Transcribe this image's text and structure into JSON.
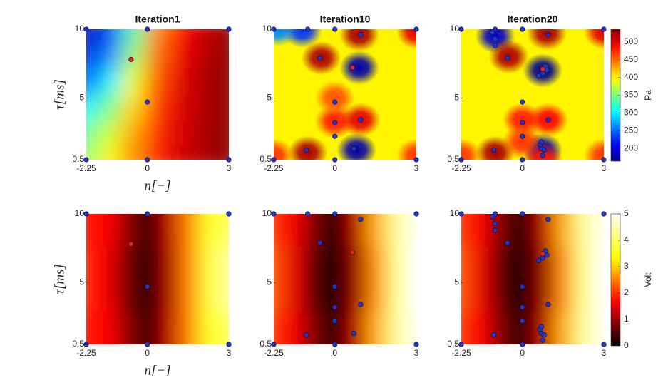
{
  "chart_data": [
    {
      "type": "heatmap",
      "title": "Iteration1",
      "xlabel": "n[−]",
      "ylabel": "τ[ms]",
      "colormap": "jet",
      "clim": [
        164,
        536
      ],
      "xlim": [
        -2.25,
        3
      ],
      "ylim": [
        0.5,
        10
      ],
      "xticks": [
        -2.25,
        0,
        3
      ],
      "yticks": [
        0.5,
        5,
        10
      ],
      "field": {
        "grid": [
          [
            180,
            230,
            330,
            440,
            490,
            510,
            530
          ],
          [
            200,
            260,
            360,
            450,
            495,
            515,
            530
          ],
          [
            240,
            300,
            390,
            460,
            500,
            520,
            530
          ],
          [
            300,
            350,
            410,
            470,
            500,
            520,
            530
          ],
          [
            340,
            380,
            430,
            475,
            505,
            520,
            530
          ],
          [
            360,
            400,
            440,
            480,
            505,
            520,
            530
          ]
        ]
      },
      "series": [
        {
          "color": "#1f35d6",
          "x": [
            -2.25,
            0,
            3,
            0,
            -2.25,
            0,
            3
          ],
          "y": [
            10,
            10,
            10,
            4.7,
            0.5,
            0.5,
            0.5
          ]
        },
        {
          "color": "#e32222",
          "x": [
            -0.6
          ],
          "y": [
            7.8
          ]
        }
      ]
    },
    {
      "type": "heatmap",
      "title": "Iteration10",
      "colormap": "jet",
      "clim": [
        164,
        536
      ],
      "xlim": [
        -2.25,
        3
      ],
      "ylim": [
        0.5,
        10
      ],
      "xticks": [
        -2.25,
        0,
        3
      ],
      "yticks": [
        0.5,
        5,
        10
      ],
      "field": {
        "base": 400,
        "peaks": {
          "x": [
            -1.2,
            -2.1,
            -0.5,
            0.9,
            0.9,
            3,
            0,
            0.95,
            0,
            -1.0,
            0.8,
            -2.25,
            3
          ],
          "y": [
            9.9,
            10,
            7.9,
            9.6,
            7.2,
            9.8,
            3.3,
            3.4,
            5,
            1.0,
            1.2,
            0.8,
            0.8
          ],
          "z": [
            230,
            260,
            520,
            520,
            180,
            500,
            480,
            500,
            460,
            520,
            180,
            470,
            470
          ]
        }
      },
      "series": [
        {
          "color": "#1f35d6",
          "x": [
            -2.25,
            0,
            3,
            0,
            -2.25,
            0,
            3,
            -1.0,
            0.95,
            -0.55,
            0,
            0.95,
            0,
            -1.05,
            0.7
          ],
          "y": [
            10,
            10,
            10,
            4.7,
            0.5,
            0.5,
            0.5,
            10,
            9.6,
            7.9,
            3.2,
            3.4,
            2.2,
            1.2,
            1.3
          ]
        },
        {
          "color": "#e32222",
          "x": [
            0.65
          ],
          "y": [
            7.2
          ]
        }
      ]
    },
    {
      "type": "heatmap",
      "title": "Iteration20",
      "colormap": "jet",
      "clim": [
        164,
        536
      ],
      "xlim": [
        -2.25,
        3
      ],
      "ylim": [
        0.5,
        10
      ],
      "xticks": [
        -2.25,
        0,
        3
      ],
      "yticks": [
        0.5,
        5,
        10
      ],
      "colorbar": {
        "label": "Pa",
        "ticks": [
          200,
          250,
          300,
          350,
          400,
          450,
          500
        ]
      },
      "field": {
        "base": 400,
        "peaks": {
          "x": [
            -1.0,
            -0.5,
            0.9,
            0.75,
            3,
            0,
            0.95,
            -1.0,
            0.75,
            0.75,
            -2.25,
            3,
            0
          ],
          "y": [
            9.5,
            8,
            9.7,
            7.0,
            9.8,
            3.4,
            3.4,
            1.0,
            1.2,
            0.5,
            0.8,
            0.8,
            1.8
          ],
          "z": [
            190,
            520,
            520,
            170,
            500,
            480,
            490,
            520,
            180,
            480,
            470,
            470,
            470
          ]
        }
      },
      "series": [
        {
          "color": "#1f35d6",
          "x": [
            -2.25,
            0,
            3,
            0,
            -2.25,
            0,
            3,
            -1.0,
            0.95,
            -0.55,
            0,
            0.95,
            0,
            -1.05,
            0.7,
            -1.1,
            -1.0,
            -1.0,
            0.6,
            0.75,
            0.85,
            0.9,
            0.65,
            0.8,
            0.7,
            0.75
          ],
          "y": [
            10,
            10,
            10,
            4.7,
            0.5,
            0.5,
            0.5,
            10,
            9.6,
            7.9,
            3.2,
            3.4,
            2.2,
            1.2,
            1.3,
            9.8,
            9.3,
            8.8,
            6.6,
            6.8,
            7.3,
            7.0,
            1.6,
            1.2,
            1.8,
            0.8
          ]
        },
        {
          "color": "#e32222",
          "x": [
            0.75
          ],
          "y": [
            7.1
          ]
        }
      ]
    },
    {
      "type": "heatmap",
      "xlabel": "n[−]",
      "ylabel": "τ[ms]",
      "colormap": "hot",
      "clim": [
        0,
        5
      ],
      "xlim": [
        -2.25,
        3
      ],
      "ylim": [
        0.5,
        10
      ],
      "xticks": [
        -2.25,
        0,
        3
      ],
      "yticks": [
        0.5,
        5,
        10
      ],
      "field": {
        "grid": [
          [
            1.8,
            1.7,
            1.0,
            0.2,
            1.2,
            2.5,
            3.6,
            3.9
          ],
          [
            1.9,
            1.6,
            0.8,
            0.0,
            1.1,
            2.5,
            3.7,
            4.3
          ],
          [
            1.8,
            1.7,
            1.0,
            0.2,
            1.2,
            2.5,
            3.6,
            3.9
          ]
        ]
      },
      "series": [
        {
          "color": "#1f35d6",
          "x": [
            -2.25,
            0,
            3,
            0,
            -2.25,
            0,
            3
          ],
          "y": [
            10,
            10,
            10,
            4.7,
            0.5,
            0.5,
            0.5
          ]
        },
        {
          "color": "#e32222",
          "x": [
            -0.6
          ],
          "y": [
            7.8
          ]
        }
      ]
    },
    {
      "type": "heatmap",
      "colormap": "hot",
      "clim": [
        0,
        5
      ],
      "xlim": [
        -2.25,
        3
      ],
      "ylim": [
        0.5,
        10
      ],
      "xticks": [
        -2.25,
        0,
        3
      ],
      "yticks": [
        0.5,
        5,
        10
      ],
      "field": {
        "grid": [
          [
            2.0,
            1.6,
            0.8,
            0.1,
            1.2,
            2.8,
            4.3,
            4.9
          ],
          [
            2.2,
            1.5,
            0.6,
            0.0,
            1.0,
            2.6,
            4.2,
            5.0
          ],
          [
            2.0,
            1.6,
            0.8,
            0.1,
            1.2,
            2.8,
            4.3,
            4.9
          ]
        ]
      },
      "series": [
        {
          "color": "#1f35d6",
          "x": [
            -2.25,
            0,
            3,
            0,
            -2.25,
            0,
            3,
            -1.0,
            0.95,
            -0.55,
            0,
            0.95,
            0,
            -1.05,
            0.7
          ],
          "y": [
            10,
            10,
            10,
            4.7,
            0.5,
            0.5,
            0.5,
            10,
            9.6,
            7.9,
            3.2,
            3.4,
            2.2,
            1.2,
            1.3
          ]
        },
        {
          "color": "#e32222",
          "x": [
            0.65
          ],
          "y": [
            7.2
          ]
        }
      ]
    },
    {
      "type": "heatmap",
      "colormap": "hot",
      "clim": [
        0,
        5
      ],
      "xlim": [
        -2.25,
        3
      ],
      "ylim": [
        0.5,
        10
      ],
      "xticks": [
        -2.25,
        0,
        3
      ],
      "yticks": [
        0.5,
        5,
        10
      ],
      "colorbar": {
        "label": "Volt",
        "ticks": [
          0,
          1,
          2,
          3,
          4,
          5
        ]
      },
      "field": {
        "grid": [
          [
            2.0,
            1.6,
            0.8,
            0.1,
            1.2,
            2.8,
            4.3,
            4.9
          ],
          [
            2.2,
            1.5,
            0.6,
            0.0,
            1.0,
            2.6,
            4.2,
            5.0
          ],
          [
            2.0,
            1.6,
            0.8,
            0.1,
            1.2,
            2.8,
            4.3,
            4.9
          ]
        ]
      },
      "series": [
        {
          "color": "#1f35d6",
          "x": [
            -2.25,
            0,
            3,
            0,
            -2.25,
            0,
            3,
            -1.0,
            0.95,
            -0.55,
            0,
            0.95,
            0,
            -1.05,
            0.7,
            -1.1,
            -1.0,
            -1.0,
            0.6,
            0.75,
            0.85,
            0.9,
            0.65,
            0.8,
            0.7,
            0.75
          ],
          "y": [
            10,
            10,
            10,
            4.7,
            0.5,
            0.5,
            0.5,
            10,
            9.6,
            7.9,
            3.2,
            3.4,
            2.2,
            1.2,
            1.3,
            9.8,
            9.3,
            8.8,
            6.6,
            6.8,
            7.3,
            7.0,
            1.6,
            1.2,
            1.8,
            0.8
          ]
        },
        {
          "color": "#e32222",
          "x": [
            0.75
          ],
          "y": [
            7.1
          ]
        }
      ]
    }
  ]
}
